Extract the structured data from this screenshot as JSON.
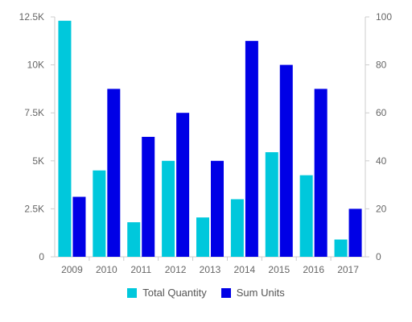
{
  "chart_data": {
    "type": "bar",
    "categories": [
      "2009",
      "2010",
      "2011",
      "2012",
      "2013",
      "2014",
      "2015",
      "2016",
      "2017"
    ],
    "series": [
      {
        "name": "Total Quantity",
        "axis": "left",
        "color": "#00c8dc",
        "values": [
          12300,
          4500,
          1800,
          5000,
          2050,
          3000,
          5450,
          4250,
          900
        ]
      },
      {
        "name": "Sum Units",
        "axis": "right",
        "color": "#0000e6",
        "values": [
          25,
          70,
          50,
          60,
          40,
          90,
          80,
          70,
          20
        ]
      }
    ],
    "y_left": {
      "ylim": [
        0,
        12500
      ],
      "ticks": [
        0,
        2500,
        5000,
        7500,
        10000,
        12500
      ],
      "tick_labels": [
        "0",
        "2.5K",
        "5K",
        "7.5K",
        "10K",
        "12.5K"
      ]
    },
    "y_right": {
      "ylim": [
        0,
        100
      ],
      "ticks": [
        0,
        20,
        40,
        60,
        80,
        100
      ],
      "tick_labels": [
        "0",
        "20",
        "40",
        "60",
        "80",
        "100"
      ]
    },
    "grid": false,
    "legend_position": "bottom"
  }
}
